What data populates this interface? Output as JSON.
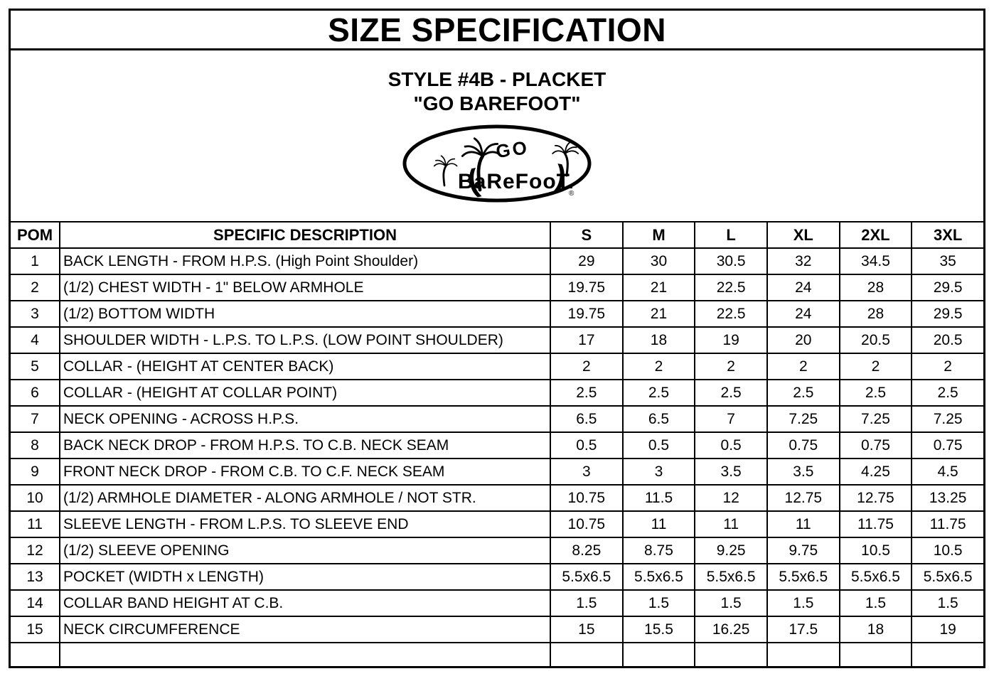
{
  "header": {
    "title": "SIZE SPECIFICATION",
    "style_line": "STYLE #4B - PLACKET",
    "brand_line": "\"GO BAREFOOT\""
  },
  "logo": {
    "top_text": "GO",
    "main_text": "BaReFooT.",
    "registered_mark": "®",
    "flourish_left": "(",
    "flourish_right": ")"
  },
  "table": {
    "columns": [
      "POM",
      "SPECIFIC DESCRIPTION",
      "S",
      "M",
      "L",
      "XL",
      "2XL",
      "3XL"
    ],
    "rows": [
      {
        "pom": "1",
        "description": "BACK LENGTH - FROM H.P.S. (High Point Shoulder)",
        "values": [
          "29",
          "30",
          "30.5",
          "32",
          "34.5",
          "35"
        ]
      },
      {
        "pom": "2",
        "description": "(1/2) CHEST WIDTH - 1\" BELOW ARMHOLE",
        "values": [
          "19.75",
          "21",
          "22.5",
          "24",
          "28",
          "29.5"
        ]
      },
      {
        "pom": "3",
        "description": "(1/2) BOTTOM WIDTH",
        "values": [
          "19.75",
          "21",
          "22.5",
          "24",
          "28",
          "29.5"
        ]
      },
      {
        "pom": "4",
        "description": "SHOULDER WIDTH - L.P.S. TO L.P.S. (LOW POINT SHOULDER)",
        "values": [
          "17",
          "18",
          "19",
          "20",
          "20.5",
          "20.5"
        ]
      },
      {
        "pom": "5",
        "description": "COLLAR - (HEIGHT AT CENTER BACK)",
        "values": [
          "2",
          "2",
          "2",
          "2",
          "2",
          "2"
        ]
      },
      {
        "pom": "6",
        "description": "COLLAR - (HEIGHT AT COLLAR POINT)",
        "values": [
          "2.5",
          "2.5",
          "2.5",
          "2.5",
          "2.5",
          "2.5"
        ]
      },
      {
        "pom": "7",
        "description": "NECK OPENING - ACROSS H.P.S.",
        "values": [
          "6.5",
          "6.5",
          "7",
          "7.25",
          "7.25",
          "7.25"
        ]
      },
      {
        "pom": "8",
        "description": "BACK NECK DROP - FROM H.P.S. TO C.B. NECK SEAM",
        "values": [
          "0.5",
          "0.5",
          "0.5",
          "0.75",
          "0.75",
          "0.75"
        ]
      },
      {
        "pom": "9",
        "description": "FRONT NECK DROP - FROM C.B. TO C.F. NECK SEAM",
        "values": [
          "3",
          "3",
          "3.5",
          "3.5",
          "4.25",
          "4.5"
        ]
      },
      {
        "pom": "10",
        "description": "(1/2) ARMHOLE DIAMETER - ALONG ARMHOLE / NOT STR.",
        "values": [
          "10.75",
          "11.5",
          "12",
          "12.75",
          "12.75",
          "13.25"
        ]
      },
      {
        "pom": "11",
        "description": "SLEEVE LENGTH - FROM L.P.S. TO SLEEVE END",
        "values": [
          "10.75",
          "11",
          "11",
          "11",
          "11.75",
          "11.75"
        ]
      },
      {
        "pom": "12",
        "description": "(1/2) SLEEVE OPENING",
        "values": [
          "8.25",
          "8.75",
          "9.25",
          "9.75",
          "10.5",
          "10.5"
        ]
      },
      {
        "pom": "13",
        "description": "POCKET (WIDTH x LENGTH)",
        "values": [
          "5.5x6.5",
          "5.5x6.5",
          "5.5x6.5",
          "5.5x6.5",
          "5.5x6.5",
          "5.5x6.5"
        ]
      },
      {
        "pom": "14",
        "description": "COLLAR BAND HEIGHT AT C.B.",
        "values": [
          "1.5",
          "1.5",
          "1.5",
          "1.5",
          "1.5",
          "1.5"
        ]
      },
      {
        "pom": "15",
        "description": "NECK CIRCUMFERENCE",
        "values": [
          "15",
          "15.5",
          "16.25",
          "17.5",
          "18",
          "19"
        ]
      }
    ],
    "empty_row_cells": 8
  },
  "colors": {
    "ink": "#000000",
    "paper": "#ffffff"
  }
}
